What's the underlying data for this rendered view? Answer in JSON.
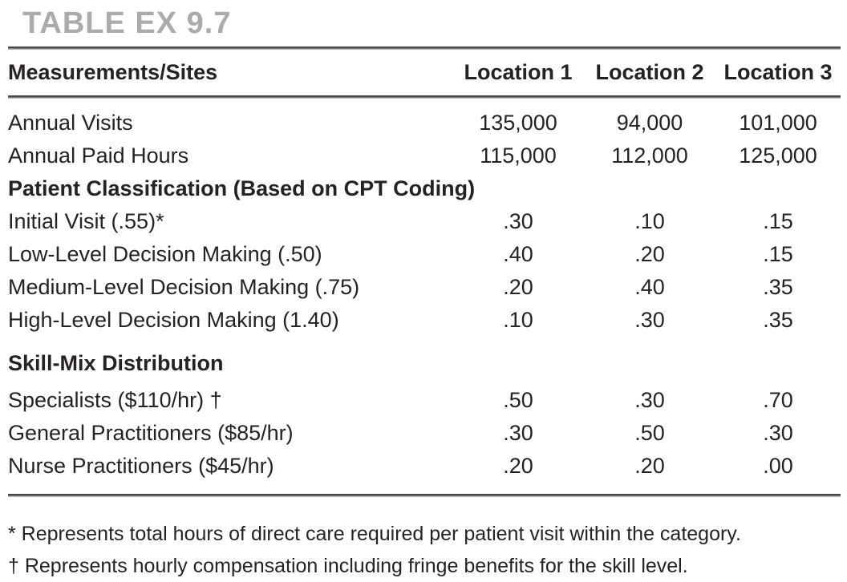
{
  "page": {
    "title": "TABLE EX 9.7"
  },
  "table": {
    "columns": [
      "Measurements/Sites",
      "Location 1",
      "Location 2",
      "Location 3"
    ],
    "rows": [
      {
        "type": "data",
        "label": "Annual Visits",
        "values": [
          "135,000",
          "94,000",
          "101,000"
        ]
      },
      {
        "type": "data",
        "label": "Annual Paid Hours",
        "values": [
          "115,000",
          "112,000",
          "125,000"
        ]
      },
      {
        "type": "section",
        "label": "Patient Classification (Based on CPT Coding)"
      },
      {
        "type": "data",
        "label": "Initial Visit (.55)*",
        "values": [
          ".30",
          ".10",
          ".15"
        ]
      },
      {
        "type": "data",
        "label": "Low-Level Decision Making (.50)",
        "values": [
          ".40",
          ".20",
          ".15"
        ]
      },
      {
        "type": "data",
        "label": "Medium-Level Decision Making (.75)",
        "values": [
          ".20",
          ".40",
          ".35"
        ]
      },
      {
        "type": "data",
        "label": "High-Level Decision Making (1.40)",
        "values": [
          ".10",
          ".30",
          ".35"
        ]
      },
      {
        "type": "section",
        "label": "Skill-Mix Distribution"
      },
      {
        "type": "data",
        "label": "Specialists ($110/hr) †",
        "values": [
          ".50",
          ".30",
          ".70"
        ]
      },
      {
        "type": "data",
        "label": "General Practitioners ($85/hr)",
        "values": [
          ".30",
          ".50",
          ".30"
        ]
      },
      {
        "type": "data",
        "label": "Nurse Practitioners ($45/hr)",
        "values": [
          ".20",
          ".20",
          ".00"
        ]
      }
    ],
    "footnotes": [
      "* Represents total hours of direct care required per patient visit within the category.",
      "† Represents hourly compensation including fringe benefits for the skill level."
    ]
  }
}
